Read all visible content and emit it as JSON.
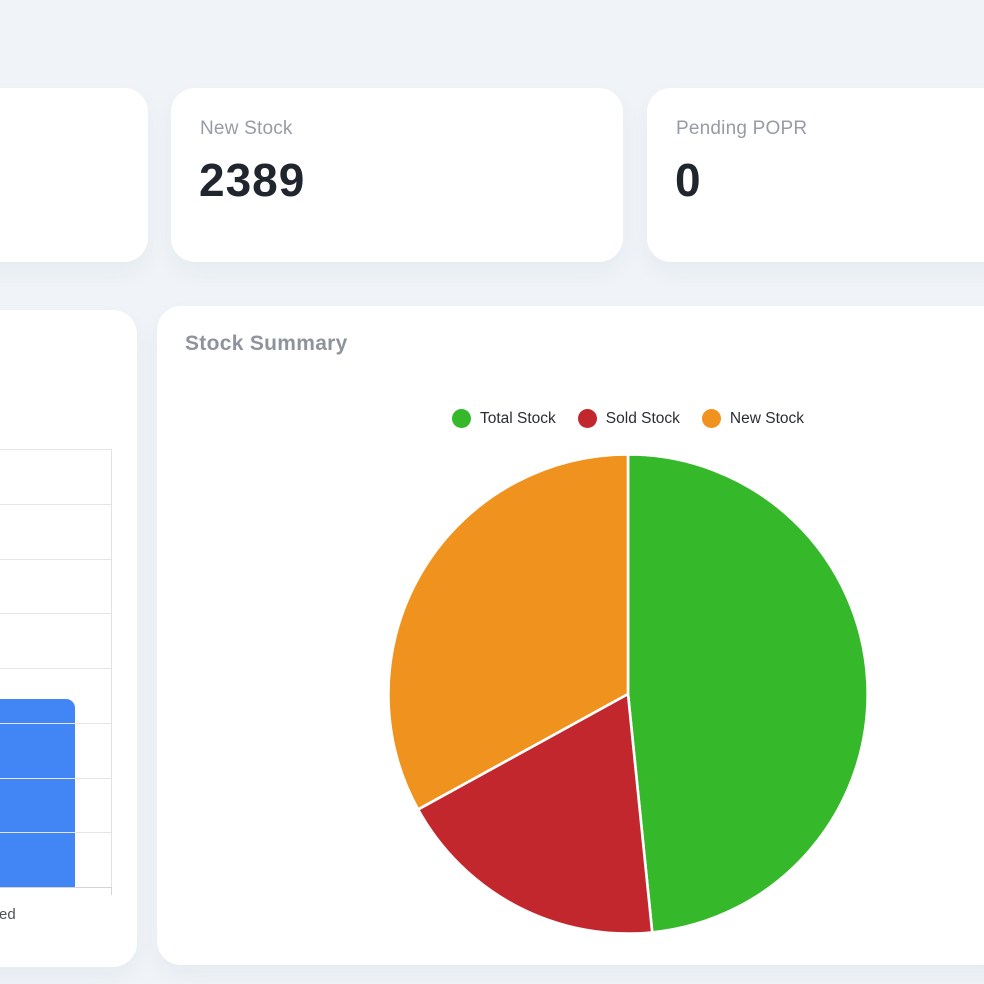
{
  "page": {
    "background": "#f0f4f8"
  },
  "stat_cards": {
    "left_partial": {
      "label": "",
      "value": ""
    },
    "new_stock": {
      "label": "New Stock",
      "value": "2389"
    },
    "pending_popr": {
      "label": "Pending POPR",
      "value": "0"
    }
  },
  "stock_summary": {
    "title": "Stock Summary",
    "legend": [
      {
        "label": "Total Stock",
        "color": "#35b82a"
      },
      {
        "label": "Sold Stock",
        "color": "#c2272d"
      },
      {
        "label": "New Stock",
        "color": "#f0921e"
      }
    ]
  },
  "bar_chart_card": {
    "x_axis_label_visible_fragment": "ed",
    "bar_color": "#4285f4"
  },
  "chart_data": [
    {
      "type": "pie",
      "title": "Stock Summary",
      "labels": [
        "Total Stock",
        "Sold Stock",
        "New Stock"
      ],
      "values_percent": [
        48.4,
        18.6,
        33.0
      ],
      "angles_deg": [
        [
          0,
          174.2
        ],
        [
          174.2,
          241.2
        ],
        [
          241.2,
          360
        ]
      ],
      "colors": [
        "#35b82a",
        "#c2272d",
        "#f0921e"
      ],
      "separator_color": "#ffffff",
      "legend_position": "top",
      "start": "12-oclock-clockwise"
    },
    {
      "type": "bar",
      "partially_visible": true,
      "categories": [
        "…ed"
      ],
      "series": [
        {
          "name": "",
          "values_fraction_of_axis": [
            0.43
          ]
        }
      ],
      "bar_color": "#4285f4",
      "grid": true,
      "gridline_rows": 8
    }
  ]
}
